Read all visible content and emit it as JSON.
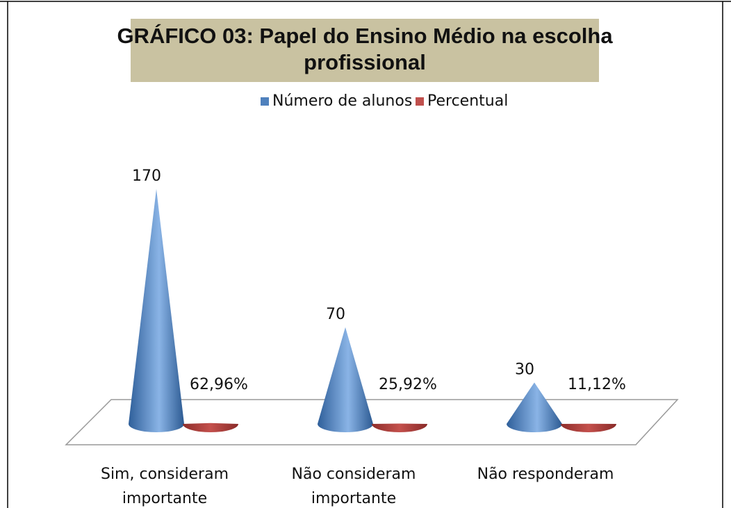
{
  "chart_data": {
    "type": "cone",
    "title": "GRÁFICO 03: Papel do Ensino Médio na escolha profissional",
    "categories": [
      "Sim, consideram importante",
      "Não consideram importante",
      "Não responderam"
    ],
    "series": [
      {
        "name": "Número de alunos",
        "color": "#4f81bd",
        "values": [
          170,
          70,
          30
        ]
      },
      {
        "name": "Percentual",
        "color": "#c0504d",
        "values": [
          62.96,
          25.92,
          11.12
        ],
        "value_labels": [
          "62,96%",
          "25,92%",
          "11,12%"
        ]
      }
    ],
    "legend": "top"
  }
}
